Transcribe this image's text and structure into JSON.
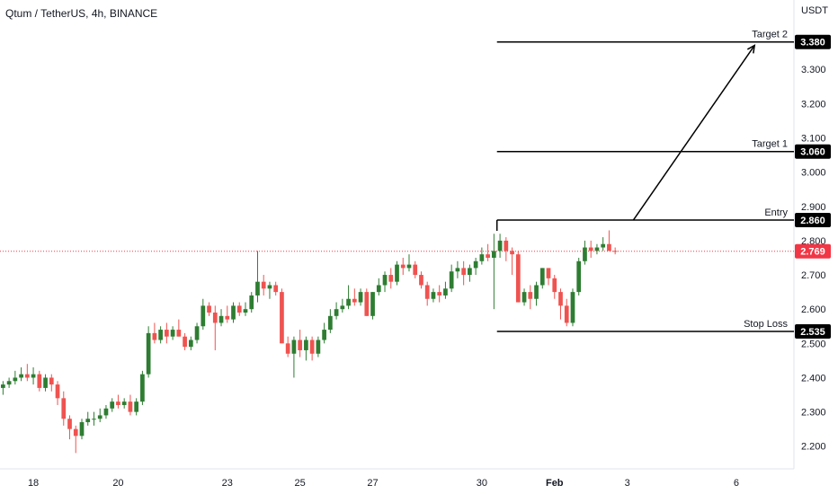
{
  "header": {
    "title": "Qtum / TetherUS, 4h, BINANCE"
  },
  "price_axis": {
    "unit": "USDT"
  },
  "chart_data": {
    "type": "candlestick",
    "symbol": "Qtum / TetherUS",
    "interval": "4h",
    "exchange": "BINANCE",
    "y_unit": "USDT",
    "ylim": [
      2.16,
      3.45
    ],
    "y_ticks": [
      "3.300",
      "3.200",
      "3.100",
      "3.000",
      "2.900",
      "2.800",
      "2.700",
      "2.600",
      "2.500",
      "2.400",
      "2.300",
      "2.200"
    ],
    "x_ticks": [
      {
        "label": "18",
        "bar": 5
      },
      {
        "label": "20",
        "bar": 19
      },
      {
        "label": "23",
        "bar": 37
      },
      {
        "label": "25",
        "bar": 49
      },
      {
        "label": "27",
        "bar": 61
      },
      {
        "label": "30",
        "bar": 79
      },
      {
        "label": "Feb",
        "bar": 91,
        "bold": true
      },
      {
        "label": "3",
        "bar": 103
      },
      {
        "label": "6",
        "bar": 121
      }
    ],
    "bar_count": 131,
    "up_color": "#26a69a",
    "up_color_solid": "#2e7d32",
    "down_color": "#ef5350",
    "last_price": {
      "value": "2.769",
      "color": "#f23645"
    },
    "levels": [
      {
        "name": "Target 2",
        "value": "3.380",
        "start_bar": 82
      },
      {
        "name": "Target 1",
        "value": "3.060",
        "start_bar": 82
      },
      {
        "name": "Entry",
        "value": "2.860",
        "start_bar": 82
      },
      {
        "name": "Stop Loss",
        "value": "2.535",
        "start_bar": 82
      }
    ],
    "projection_arrow": {
      "from": {
        "bar": 104,
        "price": 2.86
      },
      "to": {
        "bar": 124,
        "price": 3.37
      }
    },
    "candles": [
      [
        2.37,
        2.39,
        2.35,
        2.38
      ],
      [
        2.38,
        2.4,
        2.37,
        2.39
      ],
      [
        2.39,
        2.42,
        2.38,
        2.4
      ],
      [
        2.4,
        2.43,
        2.39,
        2.41
      ],
      [
        2.41,
        2.44,
        2.39,
        2.4
      ],
      [
        2.4,
        2.43,
        2.38,
        2.41
      ],
      [
        2.41,
        2.42,
        2.36,
        2.37
      ],
      [
        2.37,
        2.41,
        2.36,
        2.4
      ],
      [
        2.4,
        2.41,
        2.36,
        2.38
      ],
      [
        2.38,
        2.39,
        2.32,
        2.34
      ],
      [
        2.34,
        2.36,
        2.26,
        2.28
      ],
      [
        2.28,
        2.29,
        2.22,
        2.25
      ],
      [
        2.25,
        2.26,
        2.18,
        2.23
      ],
      [
        2.23,
        2.28,
        2.22,
        2.27
      ],
      [
        2.27,
        2.3,
        2.26,
        2.28
      ],
      [
        2.28,
        2.3,
        2.26,
        2.28
      ],
      [
        2.28,
        2.31,
        2.27,
        2.29
      ],
      [
        2.29,
        2.32,
        2.28,
        2.31
      ],
      [
        2.31,
        2.34,
        2.3,
        2.33
      ],
      [
        2.33,
        2.35,
        2.31,
        2.32
      ],
      [
        2.32,
        2.34,
        2.31,
        2.33
      ],
      [
        2.33,
        2.35,
        2.29,
        2.3
      ],
      [
        2.3,
        2.34,
        2.29,
        2.33
      ],
      [
        2.33,
        2.42,
        2.32,
        2.41
      ],
      [
        2.41,
        2.55,
        2.4,
        2.53
      ],
      [
        2.53,
        2.56,
        2.5,
        2.51
      ],
      [
        2.51,
        2.55,
        2.5,
        2.54
      ],
      [
        2.54,
        2.56,
        2.5,
        2.52
      ],
      [
        2.52,
        2.55,
        2.51,
        2.54
      ],
      [
        2.54,
        2.57,
        2.52,
        2.52
      ],
      [
        2.52,
        2.53,
        2.48,
        2.49
      ],
      [
        2.49,
        2.52,
        2.48,
        2.51
      ],
      [
        2.51,
        2.56,
        2.5,
        2.55
      ],
      [
        2.55,
        2.63,
        2.54,
        2.61
      ],
      [
        2.61,
        2.62,
        2.58,
        2.59
      ],
      [
        2.59,
        2.61,
        2.48,
        2.56
      ],
      [
        2.56,
        2.6,
        2.55,
        2.58
      ],
      [
        2.58,
        2.61,
        2.56,
        2.57
      ],
      [
        2.57,
        2.62,
        2.56,
        2.61
      ],
      [
        2.61,
        2.62,
        2.58,
        2.59
      ],
      [
        2.59,
        2.62,
        2.58,
        2.6
      ],
      [
        2.6,
        2.65,
        2.59,
        2.64
      ],
      [
        2.64,
        2.77,
        2.62,
        2.68
      ],
      [
        2.68,
        2.7,
        2.64,
        2.66
      ],
      [
        2.66,
        2.68,
        2.63,
        2.67
      ],
      [
        2.67,
        2.68,
        2.64,
        2.65
      ],
      [
        2.65,
        2.66,
        2.51,
        2.5
      ],
      [
        2.5,
        2.52,
        2.46,
        2.47
      ],
      [
        2.47,
        2.52,
        2.4,
        2.51
      ],
      [
        2.51,
        2.54,
        2.46,
        2.48
      ],
      [
        2.48,
        2.52,
        2.45,
        2.51
      ],
      [
        2.51,
        2.52,
        2.45,
        2.47
      ],
      [
        2.47,
        2.52,
        2.46,
        2.51
      ],
      [
        2.51,
        2.56,
        2.5,
        2.54
      ],
      [
        2.54,
        2.6,
        2.53,
        2.58
      ],
      [
        2.58,
        2.62,
        2.57,
        2.6
      ],
      [
        2.6,
        2.63,
        2.59,
        2.61
      ],
      [
        2.61,
        2.67,
        2.6,
        2.63
      ],
      [
        2.63,
        2.66,
        2.61,
        2.62
      ],
      [
        2.62,
        2.66,
        2.61,
        2.65
      ],
      [
        2.65,
        2.66,
        2.58,
        2.58
      ],
      [
        2.58,
        2.65,
        2.57,
        2.65
      ],
      [
        2.65,
        2.69,
        2.64,
        2.67
      ],
      [
        2.67,
        2.71,
        2.65,
        2.7
      ],
      [
        2.7,
        2.72,
        2.66,
        2.68
      ],
      [
        2.68,
        2.74,
        2.67,
        2.73
      ],
      [
        2.73,
        2.75,
        2.7,
        2.72
      ],
      [
        2.72,
        2.76,
        2.71,
        2.73
      ],
      [
        2.73,
        2.74,
        2.69,
        2.7
      ],
      [
        2.7,
        2.71,
        2.66,
        2.67
      ],
      [
        2.67,
        2.68,
        2.61,
        2.63
      ],
      [
        2.63,
        2.66,
        2.62,
        2.65
      ],
      [
        2.65,
        2.67,
        2.62,
        2.64
      ],
      [
        2.64,
        2.68,
        2.63,
        2.66
      ],
      [
        2.66,
        2.73,
        2.65,
        2.71
      ],
      [
        2.71,
        2.74,
        2.69,
        2.72
      ],
      [
        2.72,
        2.74,
        2.67,
        2.7
      ],
      [
        2.7,
        2.73,
        2.68,
        2.72
      ],
      [
        2.72,
        2.75,
        2.7,
        2.74
      ],
      [
        2.74,
        2.78,
        2.73,
        2.76
      ],
      [
        2.76,
        2.79,
        2.74,
        2.75
      ],
      [
        2.75,
        2.82,
        2.6,
        2.77
      ],
      [
        2.77,
        2.82,
        2.75,
        2.8
      ],
      [
        2.8,
        2.81,
        2.74,
        2.77
      ],
      [
        2.77,
        2.78,
        2.7,
        2.76
      ],
      [
        2.76,
        2.77,
        2.62,
        2.62
      ],
      [
        2.62,
        2.66,
        2.61,
        2.65
      ],
      [
        2.65,
        2.67,
        2.6,
        2.63
      ],
      [
        2.63,
        2.68,
        2.61,
        2.67
      ],
      [
        2.67,
        2.72,
        2.66,
        2.72
      ],
      [
        2.72,
        2.72,
        2.67,
        2.69
      ],
      [
        2.69,
        2.7,
        2.63,
        2.65
      ],
      [
        2.65,
        2.66,
        2.57,
        2.61
      ],
      [
        2.61,
        2.63,
        2.55,
        2.56
      ],
      [
        2.56,
        2.66,
        2.55,
        2.65
      ],
      [
        2.65,
        2.75,
        2.64,
        2.74
      ],
      [
        2.74,
        2.8,
        2.73,
        2.78
      ],
      [
        2.78,
        2.8,
        2.75,
        2.77
      ],
      [
        2.77,
        2.79,
        2.76,
        2.78
      ],
      [
        2.78,
        2.81,
        2.77,
        2.79
      ],
      [
        2.79,
        2.83,
        2.78,
        2.77
      ],
      [
        2.77,
        2.78,
        2.76,
        2.769
      ]
    ]
  }
}
